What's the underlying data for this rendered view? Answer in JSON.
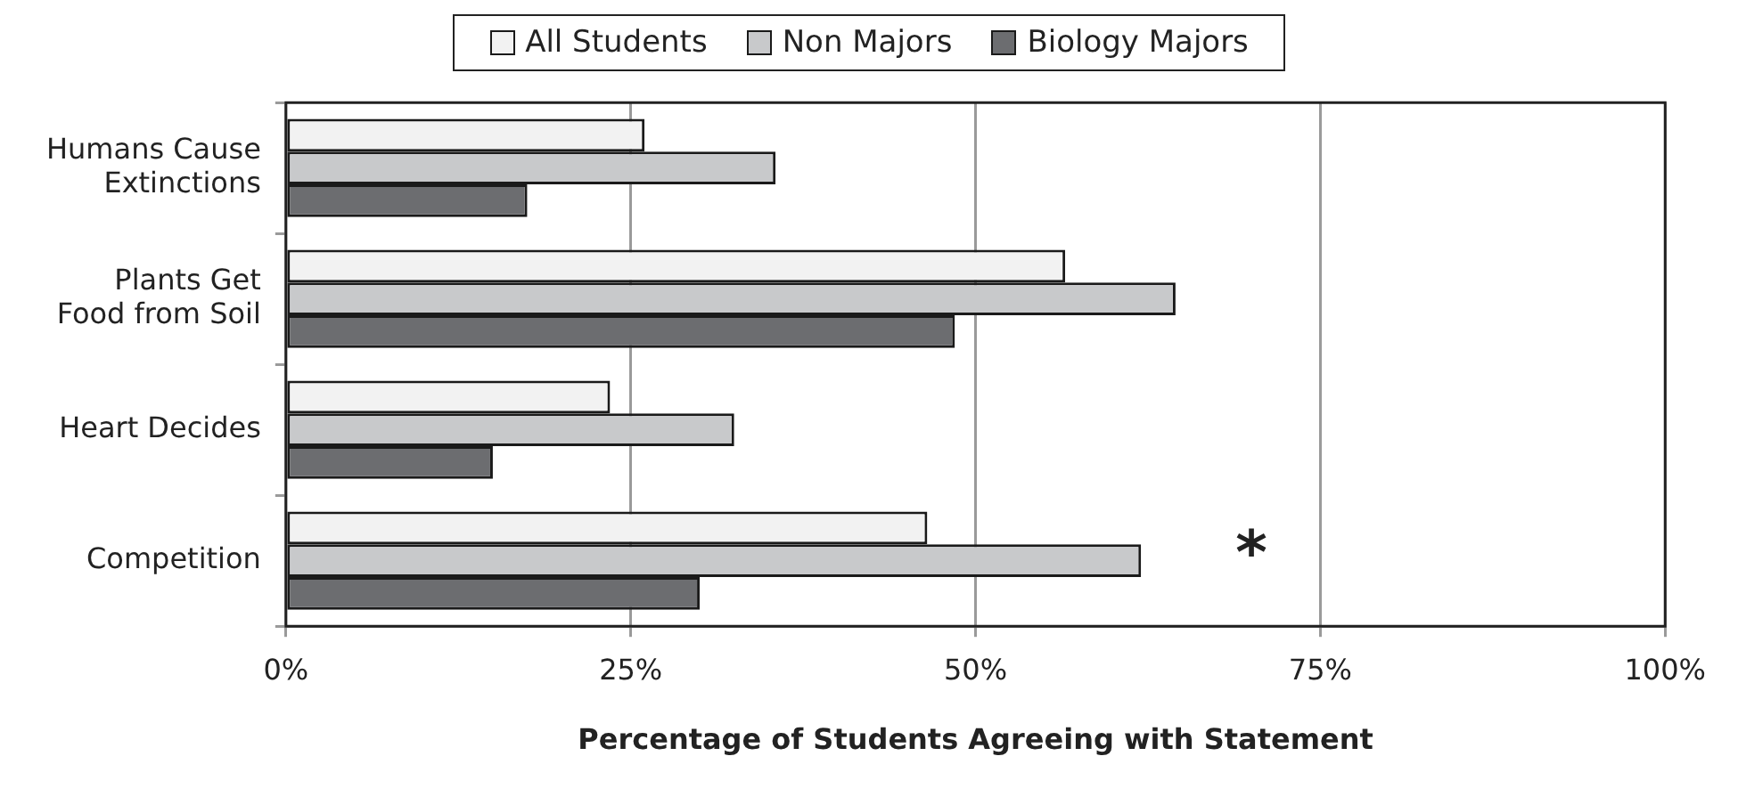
{
  "chart_data": {
    "type": "bar",
    "orientation": "horizontal",
    "xlabel": "Percentage of Students Agreeing with Statement",
    "categories": [
      "Humans Cause Extinctions",
      "Plants Get Food from Soil",
      "Heart Decides",
      "Competition"
    ],
    "series": [
      {
        "name": "All Students",
        "color": "#f2f2f2",
        "values": [
          26,
          56.5,
          23.5,
          46.5
        ]
      },
      {
        "name": "Non Majors",
        "color": "#c8c9cb",
        "values": [
          35.5,
          64.5,
          32.5,
          62
        ]
      },
      {
        "name": "Biology Majors",
        "color": "#6c6d70",
        "values": [
          17.5,
          48.5,
          15,
          30
        ]
      }
    ],
    "xlim": [
      0,
      100
    ],
    "xticks": [
      {
        "value": 0,
        "label": "0%"
      },
      {
        "value": 25,
        "label": "25%"
      },
      {
        "value": 50,
        "label": "50%"
      },
      {
        "value": 75,
        "label": "75%"
      },
      {
        "value": 100,
        "label": "100%"
      }
    ],
    "grid": "x",
    "legend": "top",
    "annotations": [
      "*"
    ]
  }
}
